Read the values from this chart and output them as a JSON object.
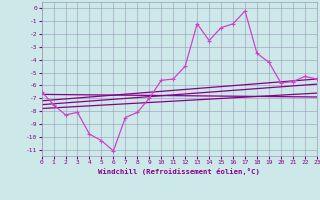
{
  "title": "",
  "xlabel": "Windchill (Refroidissement éolien,°C)",
  "xlim": [
    0,
    23
  ],
  "ylim": [
    -11.5,
    0.5
  ],
  "xticks": [
    0,
    1,
    2,
    3,
    4,
    5,
    6,
    7,
    8,
    9,
    10,
    11,
    12,
    13,
    14,
    15,
    16,
    17,
    18,
    19,
    20,
    21,
    22,
    23
  ],
  "yticks": [
    0,
    -1,
    -2,
    -3,
    -4,
    -5,
    -6,
    -7,
    -8,
    -9,
    -10,
    -11
  ],
  "background_color": "#cce8e8",
  "grid_color": "#9999bb",
  "line_color_dark": "#880088",
  "line_color_bright": "#cc44cc",
  "series1_x": [
    0,
    1,
    2,
    3,
    4,
    5,
    6,
    7,
    8,
    9,
    10,
    11,
    12,
    13,
    14,
    15,
    16,
    17,
    18,
    19,
    20,
    21,
    22,
    23
  ],
  "series1_y": [
    -6.5,
    -7.5,
    -8.3,
    -8.1,
    -9.8,
    -10.3,
    -11.1,
    -8.5,
    -8.1,
    -7.0,
    -5.6,
    -5.5,
    -4.5,
    -1.2,
    -2.5,
    -1.5,
    -1.2,
    -0.2,
    -3.5,
    -4.2,
    -5.8,
    -5.7,
    -5.3,
    -5.5
  ],
  "trend_lines": [
    {
      "x0": 0,
      "y0": -6.7,
      "x1": 23,
      "y1": -6.9
    },
    {
      "x0": 0,
      "y0": -7.2,
      "x1": 23,
      "y1": -5.5
    },
    {
      "x0": 0,
      "y0": -7.5,
      "x1": 23,
      "y1": -5.9
    },
    {
      "x0": 0,
      "y0": -7.8,
      "x1": 23,
      "y1": -6.6
    }
  ]
}
